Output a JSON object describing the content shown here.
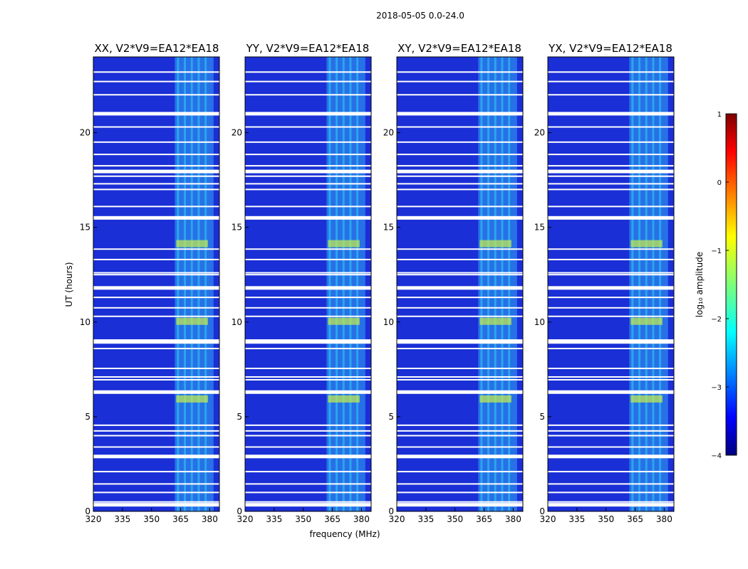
{
  "chart_data": {
    "type": "heatmap",
    "suptitle": "2018-05-05 0.0-24.0",
    "panels": [
      {
        "title": "XX, V2*V9=EA12*EA18"
      },
      {
        "title": "YY, V2*V9=EA12*EA18"
      },
      {
        "title": "XY, V2*V9=EA12*EA18"
      },
      {
        "title": "YX, V2*V9=EA12*EA18"
      }
    ],
    "xlabel": "frequency (MHz)",
    "ylabel": "UT (hours)",
    "xlim": [
      320,
      385
    ],
    "ylim": [
      0,
      24
    ],
    "xticks": [
      320,
      335,
      350,
      365,
      380
    ],
    "yticks": [
      0,
      5,
      10,
      15,
      20
    ],
    "colorbar": {
      "label": "log₁₀ amplitude",
      "range": [
        -4,
        1
      ],
      "ticks": [
        1,
        0,
        -1,
        -2,
        -3,
        -4
      ],
      "colormap": "jet"
    },
    "flagged_rows_hours": [
      0.35,
      0.5,
      1.0,
      1.45,
      2.1,
      2.9,
      3.4,
      4.0,
      4.25,
      4.55,
      6.3,
      6.95,
      7.1,
      7.55,
      8.6,
      8.95,
      9.05,
      10.3,
      10.75,
      11.3,
      11.8,
      12.5,
      12.6,
      13.3,
      13.85,
      15.5,
      16.1,
      17.0,
      17.3,
      17.7,
      17.95,
      18.25,
      18.85,
      19.5,
      20.3,
      21.0,
      22.0,
      22.7,
      23.2
    ],
    "rfi_band_mhz": [
      362,
      382
    ],
    "bright_hours": [
      5.9,
      10.0,
      14.1
    ]
  }
}
